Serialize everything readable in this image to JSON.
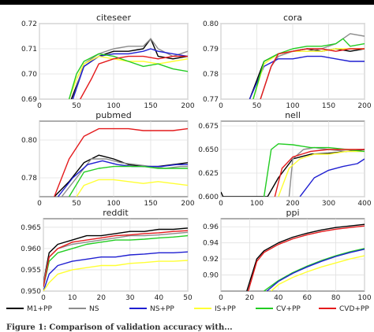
{
  "figure": {
    "caption": "Figure 1: Comparison of validation accuracy with..."
  },
  "legend": [
    {
      "name": "M1+PP",
      "color": "#000000"
    },
    {
      "name": "NS",
      "color": "#8c8c8c"
    },
    {
      "name": "NS+PP",
      "color": "#1f1fd1"
    },
    {
      "name": "IS+PP",
      "color": "#ffff33"
    },
    {
      "name": "CV+PP",
      "color": "#22cc22"
    },
    {
      "name": "CVD+PP",
      "color": "#e41a1c"
    }
  ],
  "chart_data": [
    {
      "type": "line",
      "title": "citeseer",
      "xlim": [
        0,
        200
      ],
      "ylim": [
        0.69,
        0.72
      ],
      "xticks": [
        "0",
        "50",
        "100",
        "150",
        "200"
      ],
      "yticks": [
        "0.69",
        "0.70",
        "0.71",
        "0.72"
      ],
      "grid": true,
      "series": [
        {
          "name": "M1+PP",
          "x": [
            43,
            60,
            80,
            100,
            120,
            140,
            150,
            160,
            180,
            200
          ],
          "y": [
            0.69,
            0.703,
            0.707,
            0.709,
            0.709,
            0.71,
            0.714,
            0.707,
            0.706,
            0.707
          ]
        },
        {
          "name": "NS",
          "x": [
            45,
            60,
            80,
            100,
            120,
            140,
            150,
            160,
            180,
            200
          ],
          "y": [
            0.69,
            0.704,
            0.708,
            0.71,
            0.711,
            0.711,
            0.714,
            0.71,
            0.707,
            0.709
          ]
        },
        {
          "name": "NS+PP",
          "x": [
            45,
            60,
            80,
            100,
            120,
            140,
            150,
            160,
            180,
            200
          ],
          "y": [
            0.69,
            0.703,
            0.707,
            0.708,
            0.708,
            0.709,
            0.71,
            0.709,
            0.708,
            0.707
          ]
        },
        {
          "name": "IS+PP",
          "x": [
            40,
            50,
            60,
            80,
            100,
            120,
            140,
            160,
            180,
            200
          ],
          "y": [
            0.69,
            0.698,
            0.704,
            0.707,
            0.706,
            0.705,
            0.705,
            0.704,
            0.705,
            0.706
          ]
        },
        {
          "name": "CV+PP",
          "x": [
            40,
            50,
            60,
            80,
            100,
            120,
            140,
            160,
            180,
            200
          ],
          "y": [
            0.69,
            0.7,
            0.705,
            0.708,
            0.707,
            0.705,
            0.703,
            0.704,
            0.702,
            0.701
          ]
        },
        {
          "name": "CVD+PP",
          "x": [
            55,
            70,
            80,
            100,
            120,
            140,
            160,
            180,
            200
          ],
          "y": [
            0.69,
            0.698,
            0.704,
            0.706,
            0.707,
            0.707,
            0.706,
            0.707,
            0.707
          ]
        }
      ]
    },
    {
      "type": "line",
      "title": "cora",
      "xlim": [
        0,
        200
      ],
      "ylim": [
        0.77,
        0.8
      ],
      "xticks": [
        "0",
        "50",
        "100",
        "150",
        "200"
      ],
      "yticks": [
        "0.77",
        "0.78",
        "0.79",
        "0.80"
      ],
      "grid": true,
      "series": [
        {
          "name": "M1+PP",
          "x": [
            40,
            60,
            80,
            100,
            120,
            140,
            160,
            180,
            200
          ],
          "y": [
            0.77,
            0.785,
            0.788,
            0.789,
            0.79,
            0.789,
            0.79,
            0.789,
            0.79
          ]
        },
        {
          "name": "NS",
          "x": [
            55,
            70,
            80,
            100,
            120,
            140,
            160,
            180,
            200
          ],
          "y": [
            0.77,
            0.783,
            0.787,
            0.789,
            0.789,
            0.79,
            0.792,
            0.796,
            0.795
          ]
        },
        {
          "name": "NS+PP",
          "x": [
            40,
            60,
            80,
            100,
            120,
            140,
            160,
            180,
            200
          ],
          "y": [
            0.77,
            0.783,
            0.786,
            0.786,
            0.787,
            0.787,
            0.786,
            0.785,
            0.785
          ]
        },
        {
          "name": "IS+PP",
          "x": [
            45,
            60,
            80,
            100,
            120,
            140,
            160,
            180,
            200
          ],
          "y": [
            0.77,
            0.784,
            0.788,
            0.789,
            0.789,
            0.789,
            0.79,
            0.79,
            0.79
          ]
        },
        {
          "name": "CV+PP",
          "x": [
            45,
            60,
            80,
            100,
            120,
            140,
            160,
            170,
            180,
            200
          ],
          "y": [
            0.77,
            0.785,
            0.788,
            0.79,
            0.791,
            0.791,
            0.792,
            0.794,
            0.791,
            0.792
          ]
        },
        {
          "name": "CVD+PP",
          "x": [
            55,
            70,
            80,
            100,
            120,
            140,
            160,
            180,
            200
          ],
          "y": [
            0.77,
            0.783,
            0.788,
            0.789,
            0.79,
            0.79,
            0.789,
            0.79,
            0.79
          ]
        }
      ]
    },
    {
      "type": "line",
      "title": "pubmed",
      "xlim": [
        0,
        200
      ],
      "ylim": [
        0.77,
        0.81
      ],
      "xticks": [
        "0",
        "50",
        "100",
        "150",
        "200"
      ],
      "yticks": [
        "0.78",
        "0.80"
      ],
      "grid": true,
      "series": [
        {
          "name": "M1+PP",
          "x": [
            20,
            40,
            60,
            80,
            100,
            120,
            140,
            160,
            180,
            200
          ],
          "y": [
            0.77,
            0.778,
            0.788,
            0.792,
            0.79,
            0.787,
            0.786,
            0.786,
            0.787,
            0.788
          ]
        },
        {
          "name": "NS",
          "x": [
            30,
            50,
            70,
            90,
            110,
            130,
            150,
            170,
            190,
            200
          ],
          "y": [
            0.77,
            0.78,
            0.79,
            0.79,
            0.788,
            0.787,
            0.786,
            0.785,
            0.786,
            0.786
          ]
        },
        {
          "name": "NS+PP",
          "x": [
            25,
            45,
            65,
            85,
            105,
            125,
            145,
            165,
            185,
            200
          ],
          "y": [
            0.77,
            0.78,
            0.787,
            0.789,
            0.787,
            0.786,
            0.786,
            0.786,
            0.787,
            0.787
          ]
        },
        {
          "name": "IS+PP",
          "x": [
            50,
            60,
            80,
            100,
            120,
            140,
            160,
            180,
            200
          ],
          "y": [
            0.77,
            0.776,
            0.779,
            0.779,
            0.778,
            0.777,
            0.778,
            0.777,
            0.776
          ]
        },
        {
          "name": "CV+PP",
          "x": [
            40,
            60,
            80,
            100,
            120,
            140,
            160,
            180,
            200
          ],
          "y": [
            0.77,
            0.783,
            0.785,
            0.786,
            0.786,
            0.786,
            0.785,
            0.785,
            0.785
          ]
        },
        {
          "name": "CVD+PP",
          "x": [
            20,
            40,
            60,
            80,
            100,
            120,
            140,
            160,
            180,
            200
          ],
          "y": [
            0.77,
            0.79,
            0.802,
            0.806,
            0.806,
            0.806,
            0.805,
            0.805,
            0.805,
            0.806
          ]
        }
      ]
    },
    {
      "type": "line",
      "title": "nell",
      "xlim": [
        0,
        400
      ],
      "ylim": [
        0.6,
        0.68
      ],
      "xticks": [
        "0",
        "100",
        "200",
        "300",
        "400"
      ],
      "yticks": [
        "0.600",
        "0.625",
        "0.650",
        "0.675"
      ],
      "grid": true,
      "series": [
        {
          "name": "M1+PP",
          "x": [
            0,
            6,
            130,
            160,
            200,
            250,
            300,
            350,
            400
          ],
          "y": [
            0.605,
            0.6,
            0.6,
            0.62,
            0.64,
            0.645,
            0.646,
            0.648,
            0.65
          ]
        },
        {
          "name": "NS",
          "x": [
            190,
            200,
            230,
            260,
            300,
            350,
            400
          ],
          "y": [
            0.6,
            0.64,
            0.65,
            0.652,
            0.65,
            0.648,
            0.648
          ]
        },
        {
          "name": "NS+PP",
          "x": [
            220,
            260,
            300,
            340,
            380,
            400
          ],
          "y": [
            0.6,
            0.62,
            0.628,
            0.632,
            0.635,
            0.64
          ]
        },
        {
          "name": "IS+PP",
          "x": [
            160,
            190,
            220,
            260,
            300,
            350,
            400
          ],
          "y": [
            0.6,
            0.63,
            0.64,
            0.645,
            0.645,
            0.648,
            0.648
          ]
        },
        {
          "name": "CV+PP",
          "x": [
            120,
            140,
            160,
            200,
            250,
            300,
            350,
            400
          ],
          "y": [
            0.6,
            0.65,
            0.656,
            0.655,
            0.652,
            0.652,
            0.65,
            0.648
          ]
        },
        {
          "name": "CVD+PP",
          "x": [
            150,
            170,
            200,
            250,
            300,
            350,
            400
          ],
          "y": [
            0.6,
            0.63,
            0.642,
            0.648,
            0.65,
            0.65,
            0.65
          ]
        }
      ]
    },
    {
      "type": "line",
      "title": "reddit",
      "xlim": [
        0,
        50
      ],
      "ylim": [
        0.95,
        0.967
      ],
      "xticks": [
        "0",
        "10",
        "20",
        "30",
        "40",
        "50"
      ],
      "yticks": [
        "0.950",
        "0.955",
        "0.960",
        "0.965"
      ],
      "grid": true,
      "series": [
        {
          "name": "M1+PP",
          "x": [
            0,
            2,
            5,
            10,
            15,
            20,
            25,
            30,
            35,
            40,
            45,
            50
          ],
          "y": [
            0.952,
            0.959,
            0.961,
            0.962,
            0.963,
            0.963,
            0.9635,
            0.964,
            0.964,
            0.9645,
            0.9645,
            0.9648
          ]
        },
        {
          "name": "NS",
          "x": [
            0,
            2,
            5,
            10,
            15,
            20,
            25,
            30,
            35,
            40,
            45,
            50
          ],
          "y": [
            0.952,
            0.958,
            0.96,
            0.961,
            0.9615,
            0.962,
            0.9625,
            0.963,
            0.963,
            0.9632,
            0.9635,
            0.9638
          ]
        },
        {
          "name": "NS+PP",
          "x": [
            0,
            2,
            5,
            10,
            15,
            20,
            25,
            30,
            35,
            40,
            45,
            50
          ],
          "y": [
            0.95,
            0.954,
            0.956,
            0.957,
            0.9575,
            0.958,
            0.958,
            0.9585,
            0.9587,
            0.959,
            0.959,
            0.9592
          ]
        },
        {
          "name": "IS+PP",
          "x": [
            0,
            2,
            5,
            10,
            15,
            20,
            25,
            30,
            35,
            40,
            45,
            50
          ],
          "y": [
            0.95,
            0.952,
            0.954,
            0.955,
            0.9555,
            0.956,
            0.956,
            0.9565,
            0.9567,
            0.957,
            0.957,
            0.9572
          ]
        },
        {
          "name": "CV+PP",
          "x": [
            0,
            2,
            5,
            10,
            15,
            20,
            25,
            30,
            35,
            40,
            45,
            50
          ],
          "y": [
            0.951,
            0.957,
            0.959,
            0.96,
            0.961,
            0.9615,
            0.962,
            0.962,
            0.9622,
            0.9625,
            0.9627,
            0.963
          ]
        },
        {
          "name": "CVD+PP",
          "x": [
            0,
            2,
            5,
            10,
            15,
            20,
            25,
            30,
            35,
            40,
            45,
            50
          ],
          "y": [
            0.951,
            0.958,
            0.96,
            0.9615,
            0.962,
            0.9625,
            0.963,
            0.9632,
            0.9635,
            0.9637,
            0.964,
            0.9642
          ]
        }
      ]
    },
    {
      "type": "line",
      "title": "ppi",
      "xlim": [
        0,
        100
      ],
      "ylim": [
        0.88,
        0.97
      ],
      "xticks": [
        "0",
        "20",
        "40",
        "60",
        "80",
        "100"
      ],
      "yticks": [
        "0.90",
        "0.92",
        "0.94",
        "0.96"
      ],
      "grid": true,
      "series": [
        {
          "name": "M1+PP",
          "x": [
            18,
            25,
            30,
            40,
            50,
            60,
            70,
            80,
            90,
            100
          ],
          "y": [
            0.88,
            0.92,
            0.93,
            0.94,
            0.947,
            0.952,
            0.956,
            0.959,
            0.961,
            0.963
          ]
        },
        {
          "name": "CVD+PP",
          "x": [
            19,
            25,
            30,
            40,
            50,
            60,
            70,
            80,
            90,
            100
          ],
          "y": [
            0.88,
            0.917,
            0.928,
            0.938,
            0.945,
            0.95,
            0.954,
            0.957,
            0.959,
            0.961
          ]
        },
        {
          "name": "CV+PP",
          "x": [
            30,
            40,
            50,
            60,
            70,
            80,
            90,
            100
          ],
          "y": [
            0.88,
            0.893,
            0.903,
            0.911,
            0.918,
            0.924,
            0.929,
            0.933
          ]
        },
        {
          "name": "NS+PP",
          "x": [
            32,
            40,
            50,
            60,
            70,
            80,
            90,
            100
          ],
          "y": [
            0.88,
            0.892,
            0.902,
            0.91,
            0.917,
            0.923,
            0.928,
            0.932
          ]
        },
        {
          "name": "IS+PP",
          "x": [
            35,
            40,
            50,
            60,
            70,
            80,
            90,
            100
          ],
          "y": [
            0.88,
            0.888,
            0.897,
            0.904,
            0.91,
            0.915,
            0.92,
            0.924
          ]
        }
      ]
    }
  ]
}
